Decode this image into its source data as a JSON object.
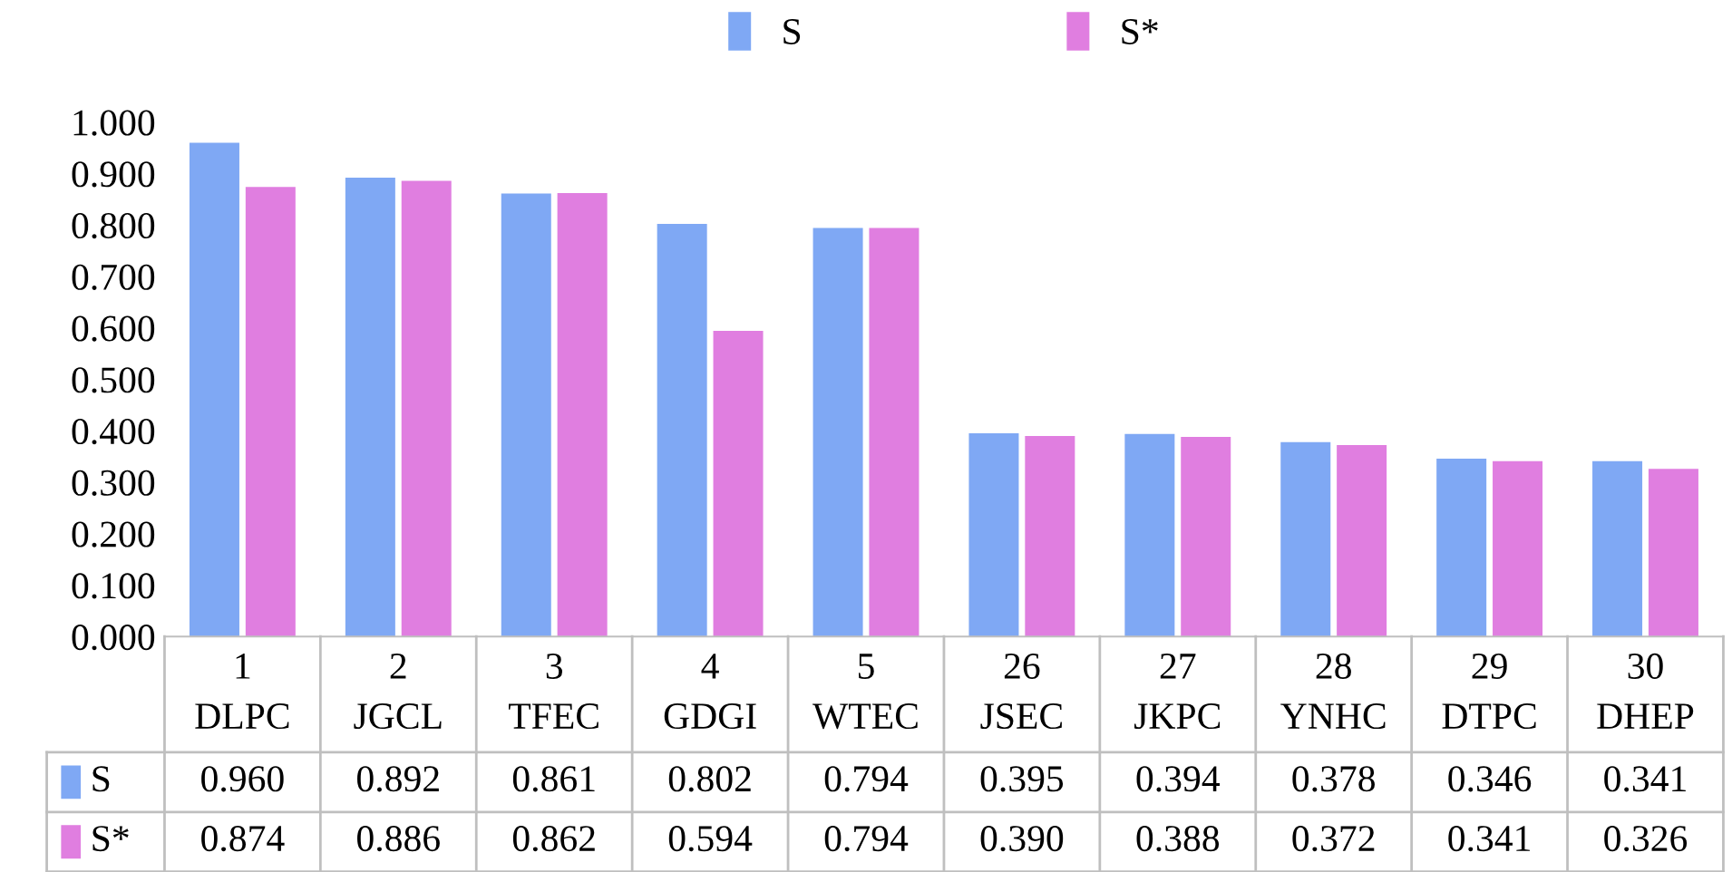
{
  "chart_data": {
    "type": "bar",
    "categories": [
      "1\nDLPC",
      "2\nJGCL",
      "3\nTFEC",
      "4\nGDGI",
      "5\nWTEC",
      "26\nJSEC",
      "27\nJKPC",
      "28\nYNHC",
      "29\nDTPC",
      "30\nDHEP"
    ],
    "series": [
      {
        "name": "S",
        "color": "#7fa8f4",
        "values": [
          0.96,
          0.892,
          0.861,
          0.802,
          0.794,
          0.395,
          0.394,
          0.378,
          0.346,
          0.341
        ],
        "value_labels": [
          "0.960",
          "0.892",
          "0.861",
          "0.802",
          "0.794",
          "0.395",
          "0.394",
          "0.378",
          "0.346",
          "0.341"
        ]
      },
      {
        "name": "S*",
        "color": "#e07ee0",
        "values": [
          0.874,
          0.886,
          0.862,
          0.594,
          0.794,
          0.39,
          0.388,
          0.372,
          0.341,
          0.326
        ],
        "value_labels": [
          "0.874",
          "0.886",
          "0.862",
          "0.594",
          "0.794",
          "0.390",
          "0.388",
          "0.372",
          "0.341",
          "0.326"
        ]
      }
    ],
    "ylim": [
      0,
      1
    ],
    "yticks": [
      {
        "value": 0,
        "label": "0.000"
      },
      {
        "value": 0.1,
        "label": "0.100"
      },
      {
        "value": 0.2,
        "label": "0.200"
      },
      {
        "value": 0.3,
        "label": "0.300"
      },
      {
        "value": 0.4,
        "label": "0.400"
      },
      {
        "value": 0.5,
        "label": "0.500"
      },
      {
        "value": 0.6,
        "label": "0.600"
      },
      {
        "value": 0.7,
        "label": "0.700"
      },
      {
        "value": 0.8,
        "label": "0.800"
      },
      {
        "value": 0.9,
        "label": "0.900"
      },
      {
        "value": 1,
        "label": "1.000"
      }
    ],
    "legend": "top",
    "grid": false
  }
}
